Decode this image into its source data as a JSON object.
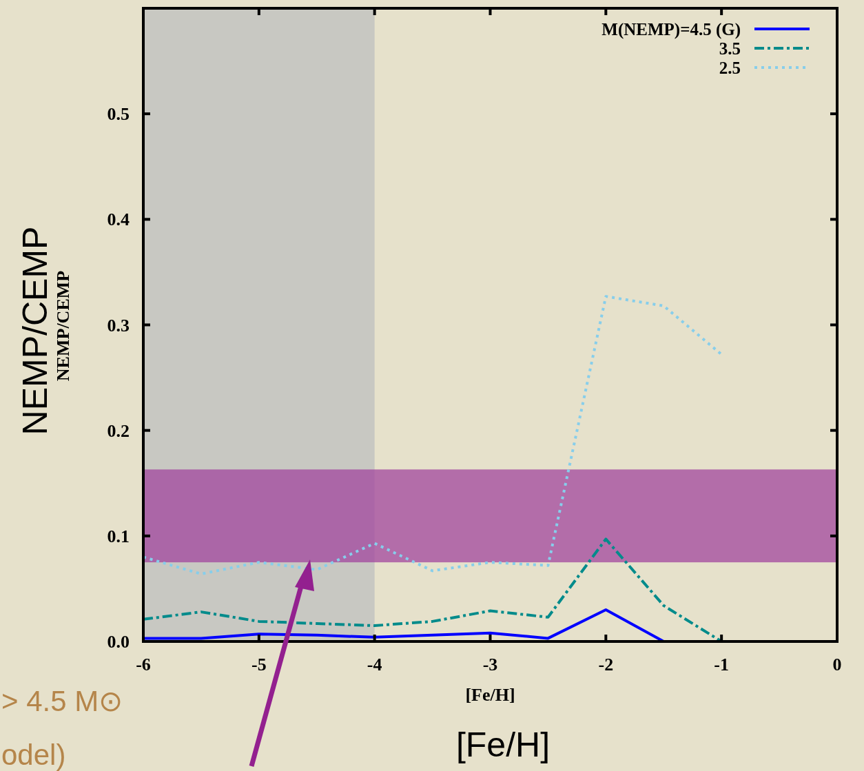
{
  "chart_data": {
    "type": "line",
    "xlabel": "[Fe/H]",
    "ylabel": "NEMP/CEMP",
    "x": [
      -6,
      -5.5,
      -5,
      -4.5,
      -4,
      -3.5,
      -3,
      -2.5,
      -2,
      -1.5,
      -1
    ],
    "series": [
      {
        "name": "M(NEMP)=4.5 (G)",
        "color": "#0000ff",
        "line_style": "solid",
        "values": [
          0.003,
          0.003,
          0.007,
          0.006,
          0.004,
          0.006,
          0.008,
          0.003,
          0.03,
          0,
          null
        ]
      },
      {
        "name": "3.5",
        "color": "#008b8b",
        "line_style": "dashed",
        "values": [
          0.021,
          0.028,
          0.019,
          0.017,
          0.015,
          0.019,
          0.029,
          0.023,
          0.097,
          0.034,
          0
        ]
      },
      {
        "name": "2.5",
        "color": "#87ceeb",
        "line_style": "dotted",
        "values": [
          0.08,
          0.064,
          0.075,
          0.068,
          0.093,
          0.067,
          0.075,
          0.072,
          0.327,
          0.318,
          0.272
        ]
      }
    ],
    "xlim": [
      -6,
      0
    ],
    "ylim": [
      0,
      0.6
    ],
    "xticks": [
      -6,
      -5,
      -4,
      -3,
      -2,
      -1,
      0
    ],
    "yticks": [
      {
        "value": 0,
        "label": "0.0"
      },
      0.1,
      0.2,
      0.3,
      0.4,
      0.5
    ],
    "bands": [
      {
        "axis": "x",
        "from": -6,
        "to": -4,
        "color": "#b4b8bc"
      },
      {
        "axis": "y",
        "from": 0.075,
        "to": 0.163,
        "color": "#a2469e"
      }
    ],
    "legend": "top right",
    "grid": false,
    "annotations": [
      "NEMP/CEMP",
      "[Fe/H]",
      "> 4.5 M⊙",
      "odel)"
    ]
  }
}
